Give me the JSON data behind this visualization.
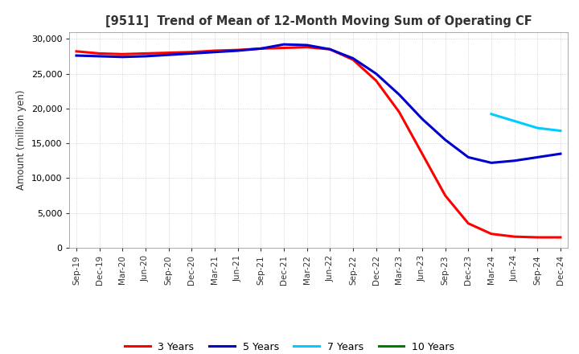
{
  "title": "[9511]  Trend of Mean of 12-Month Moving Sum of Operating CF",
  "ylabel": "Amount (million yen)",
  "legend_labels": [
    "3 Years",
    "5 Years",
    "7 Years",
    "10 Years"
  ],
  "legend_colors": [
    "#ff0000",
    "#0000cd",
    "#00ccff",
    "#008000"
  ],
  "x_labels": [
    "Sep-19",
    "Dec-19",
    "Mar-20",
    "Jun-20",
    "Sep-20",
    "Dec-20",
    "Mar-21",
    "Jun-21",
    "Sep-21",
    "Dec-21",
    "Mar-22",
    "Jun-22",
    "Sep-22",
    "Dec-22",
    "Mar-23",
    "Jun-23",
    "Sep-23",
    "Dec-23",
    "Mar-24",
    "Jun-24",
    "Sep-24",
    "Dec-24"
  ],
  "ylim": [
    0,
    31000
  ],
  "yticks": [
    0,
    5000,
    10000,
    15000,
    20000,
    25000,
    30000
  ],
  "series_3y": [
    28200,
    27900,
    27800,
    27900,
    28000,
    28100,
    28300,
    28400,
    28600,
    28700,
    28800,
    28500,
    27000,
    24000,
    19500,
    13500,
    7500,
    3500,
    2000,
    1600,
    1500,
    1500
  ],
  "series_5y": [
    27600,
    27500,
    27400,
    27500,
    27700,
    27900,
    28100,
    28300,
    28600,
    29200,
    29100,
    28500,
    27200,
    25000,
    22000,
    18500,
    15500,
    13000,
    12200,
    12500,
    13000,
    13500
  ],
  "series_7y": [
    null,
    null,
    null,
    null,
    null,
    null,
    null,
    null,
    null,
    null,
    null,
    null,
    null,
    null,
    null,
    null,
    null,
    null,
    19200,
    18200,
    17200,
    16800
  ],
  "series_10y": [
    null,
    null,
    null,
    null,
    null,
    null,
    null,
    null,
    null,
    null,
    null,
    null,
    null,
    null,
    null,
    null,
    null,
    null,
    null,
    null,
    null,
    null
  ],
  "background_color": "#ffffff",
  "grid_color": "#aaaaaa"
}
